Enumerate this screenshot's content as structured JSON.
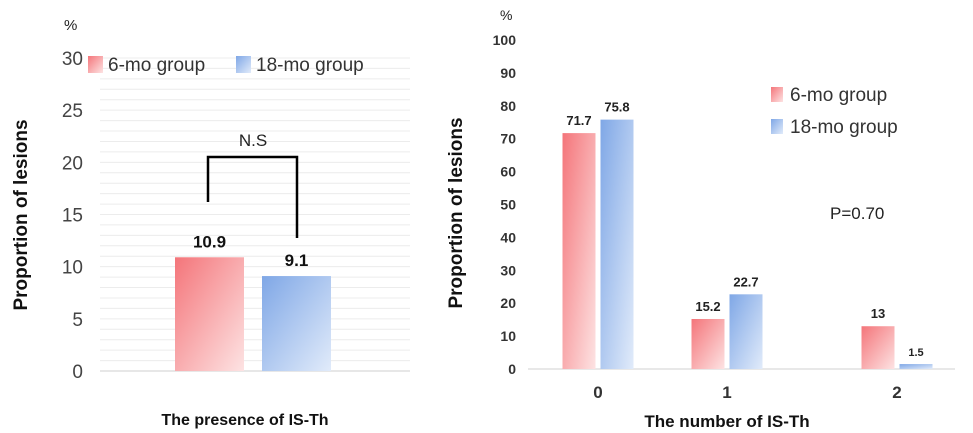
{
  "chart_data": [
    {
      "type": "bar",
      "unit": "%",
      "categories": [
        ""
      ],
      "series": [
        {
          "name": "6-mo group",
          "values": [
            10.9
          ]
        },
        {
          "name": "18-mo group",
          "values": [
            9.1
          ]
        }
      ],
      "value_labels": [
        "10.9",
        "9.1"
      ],
      "title": "",
      "xlabel": "The presence of IS-Th",
      "ylabel": "Proportion of lesions",
      "ylim": [
        0,
        30
      ],
      "yticks": [
        0,
        5,
        10,
        15,
        20,
        25,
        30
      ],
      "grid": true,
      "legend": "top",
      "annotation": "N.S",
      "colors": {
        "6-mo group": "#f4757a",
        "18-mo group": "#7fa7e6"
      }
    },
    {
      "type": "bar",
      "unit": "%",
      "categories": [
        "0",
        "1",
        "2"
      ],
      "series": [
        {
          "name": "6-mo group",
          "values": [
            71.7,
            15.2,
            13
          ]
        },
        {
          "name": "18-mo group",
          "values": [
            75.8,
            22.7,
            1.5
          ]
        }
      ],
      "value_labels": [
        [
          "71.7",
          "15.2",
          "13"
        ],
        [
          "75.8",
          "22.7",
          "1.5"
        ]
      ],
      "title": "",
      "xlabel": "The number of IS-Th",
      "ylabel": "Proportion of lesions",
      "ylim": [
        0,
        100
      ],
      "yticks": [
        0,
        10,
        20,
        30,
        40,
        50,
        60,
        70,
        80,
        90,
        100
      ],
      "grid": false,
      "legend": "top-right",
      "annotation": "P=0.70",
      "colors": {
        "6-mo group": "#f4757a",
        "18-mo group": "#7fa7e6"
      }
    }
  ]
}
